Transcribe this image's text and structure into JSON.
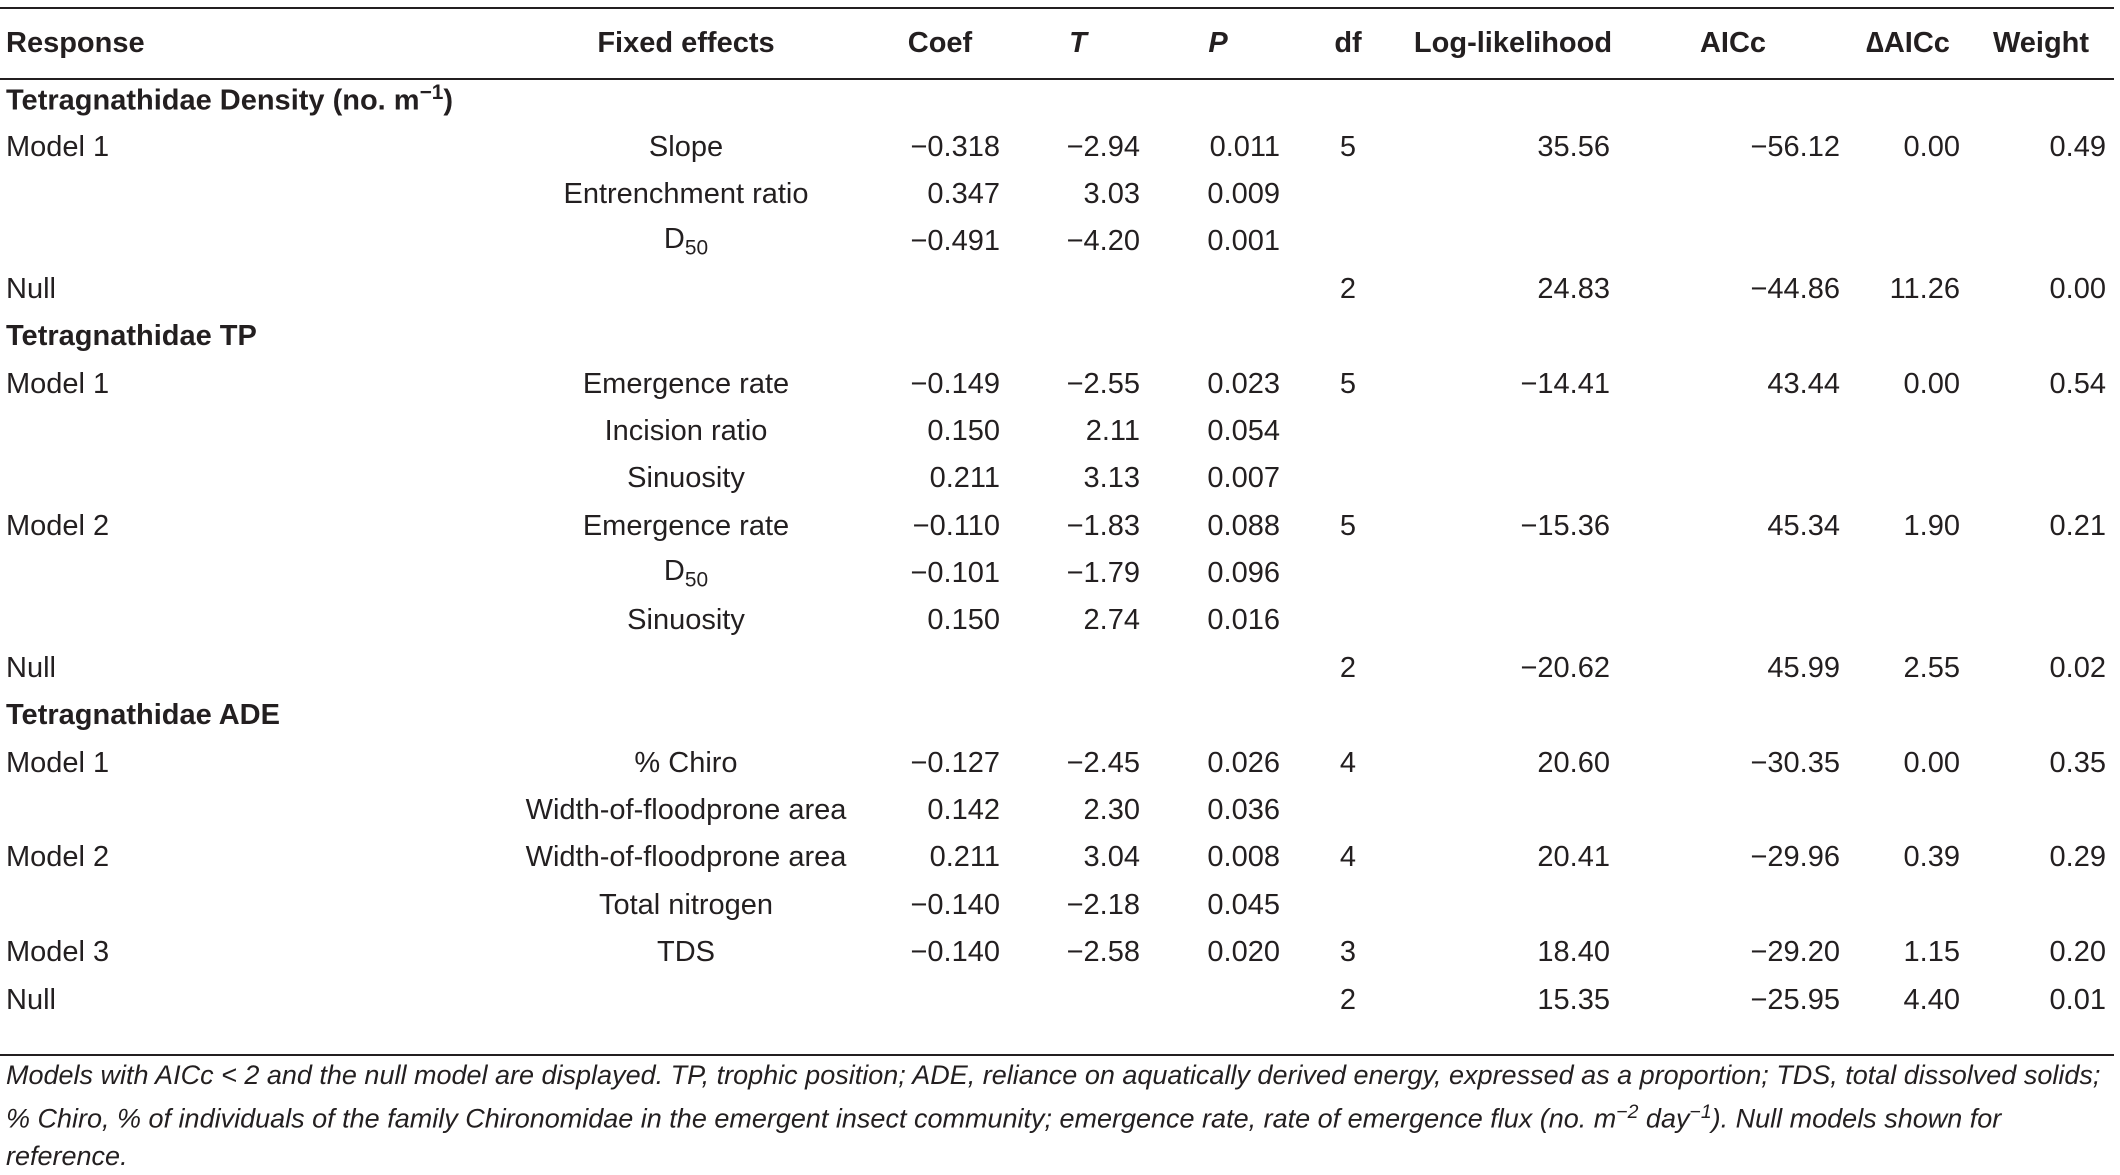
{
  "headers": {
    "response": "Response",
    "fixed_effects": "Fixed effects",
    "coef": "Coef",
    "t": "T",
    "p": "P",
    "df": "df",
    "loglik": "Log-likelihood",
    "aicc": "AICc",
    "delta_aicc": "∆AICc",
    "weight": "Weight"
  },
  "groups": {
    "density": "Tetragnathidae Density (no. m",
    "density_sup": "−1",
    "density_close": ")",
    "tp": "Tetragnathidae TP",
    "ade": "Tetragnathidae ADE"
  },
  "d50": {
    "base": "D",
    "sub": "50"
  },
  "rows": [
    {
      "response": "Model 1",
      "effect": "Slope",
      "coef": "−0.318",
      "t": "−2.94",
      "p": "0.011",
      "df": "5",
      "loglik": "35.56",
      "aicc": "−56.12",
      "daicc": "0.00",
      "weight": "0.49"
    },
    {
      "response": "",
      "effect": "Entrenchment ratio",
      "coef": "0.347",
      "t": "3.03",
      "p": "0.009",
      "df": "",
      "loglik": "",
      "aicc": "",
      "daicc": "",
      "weight": ""
    },
    {
      "response": "",
      "effect": "",
      "coef": "−0.491",
      "t": "−4.20",
      "p": "0.001",
      "df": "",
      "loglik": "",
      "aicc": "",
      "daicc": "",
      "weight": ""
    },
    {
      "response": "Null",
      "effect": "",
      "coef": "",
      "t": "",
      "p": "",
      "df": "2",
      "loglik": "24.83",
      "aicc": "−44.86",
      "daicc": "11.26",
      "weight": "0.00"
    },
    {
      "response": "Model 1",
      "effect": "Emergence rate",
      "coef": "−0.149",
      "t": "−2.55",
      "p": "0.023",
      "df": "5",
      "loglik": "−14.41",
      "aicc": "43.44",
      "daicc": "0.00",
      "weight": "0.54"
    },
    {
      "response": "",
      "effect": "Incision ratio",
      "coef": "0.150",
      "t": "2.11",
      "p": "0.054",
      "df": "",
      "loglik": "",
      "aicc": "",
      "daicc": "",
      "weight": ""
    },
    {
      "response": "",
      "effect": "Sinuosity",
      "coef": "0.211",
      "t": "3.13",
      "p": "0.007",
      "df": "",
      "loglik": "",
      "aicc": "",
      "daicc": "",
      "weight": ""
    },
    {
      "response": "Model 2",
      "effect": "Emergence rate",
      "coef": "−0.110",
      "t": "−1.83",
      "p": "0.088",
      "df": "5",
      "loglik": "−15.36",
      "aicc": "45.34",
      "daicc": "1.90",
      "weight": "0.21"
    },
    {
      "response": "",
      "effect": "",
      "coef": "−0.101",
      "t": "−1.79",
      "p": "0.096",
      "df": "",
      "loglik": "",
      "aicc": "",
      "daicc": "",
      "weight": ""
    },
    {
      "response": "",
      "effect": "Sinuosity",
      "coef": "0.150",
      "t": "2.74",
      "p": "0.016",
      "df": "",
      "loglik": "",
      "aicc": "",
      "daicc": "",
      "weight": ""
    },
    {
      "response": "Null",
      "effect": "",
      "coef": "",
      "t": "",
      "p": "",
      "df": "2",
      "loglik": "−20.62",
      "aicc": "45.99",
      "daicc": "2.55",
      "weight": "0.02"
    },
    {
      "response": "Model 1",
      "effect": "% Chiro",
      "coef": "−0.127",
      "t": "−2.45",
      "p": "0.026",
      "df": "4",
      "loglik": "20.60",
      "aicc": "−30.35",
      "daicc": "0.00",
      "weight": "0.35"
    },
    {
      "response": "",
      "effect": "Width-of-floodprone area",
      "coef": "0.142",
      "t": "2.30",
      "p": "0.036",
      "df": "",
      "loglik": "",
      "aicc": "",
      "daicc": "",
      "weight": ""
    },
    {
      "response": "Model 2",
      "effect": "Width-of-floodprone area",
      "coef": "0.211",
      "t": "3.04",
      "p": "0.008",
      "df": "4",
      "loglik": "20.41",
      "aicc": "−29.96",
      "daicc": "0.39",
      "weight": "0.29"
    },
    {
      "response": "",
      "effect": "Total nitrogen",
      "coef": "−0.140",
      "t": "−2.18",
      "p": "0.045",
      "df": "",
      "loglik": "",
      "aicc": "",
      "daicc": "",
      "weight": ""
    },
    {
      "response": "Model 3",
      "effect": "TDS",
      "coef": "−0.140",
      "t": "−2.58",
      "p": "0.020",
      "df": "3",
      "loglik": "18.40",
      "aicc": "−29.20",
      "daicc": "1.15",
      "weight": "0.20"
    },
    {
      "response": "Null",
      "effect": "",
      "coef": "",
      "t": "",
      "p": "",
      "df": "2",
      "loglik": "15.35",
      "aicc": "−25.95",
      "daicc": "4.40",
      "weight": "0.01"
    }
  ],
  "footnote": {
    "part1": "Models with AICc < 2 and the null model are displayed. TP, trophic position; ADE, reliance on aquatically derived energy, expressed as a proportion; TDS, total dissolved solids; % Chiro, % of individuals of the family Chironomidae in the emergent insect community; emergence rate, rate of emergence flux (no. m",
    "sup1": "−2",
    "part2": " day",
    "sup2": "−1",
    "part3": "). Null models shown for reference."
  }
}
